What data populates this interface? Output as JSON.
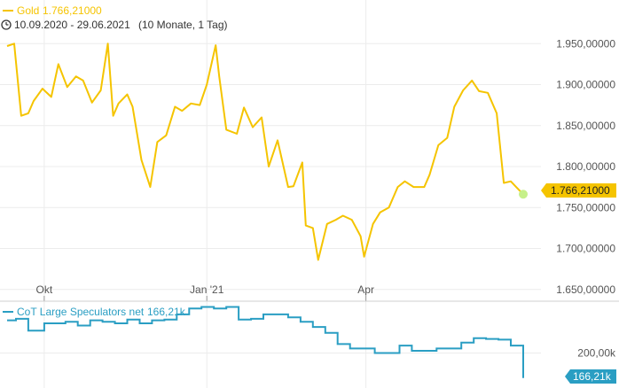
{
  "colors": {
    "gold": "#f5c400",
    "cot": "#2a9ec3",
    "grid": "#ececec",
    "axis_text": "#555555",
    "last_point": "#c6f08a"
  },
  "header": {
    "icon": "clock-icon",
    "series_label": "Gold",
    "series_value": "1.766,21000",
    "range": "10.09.2020 - 29.06.2021",
    "range_note": "(10 Monate, 1 Tag)"
  },
  "chart_data": [
    {
      "type": "line",
      "title": "",
      "xlabel": "",
      "ylabel": "",
      "x_tick_labels": [
        "Okt",
        "Jan '21",
        "Apr"
      ],
      "x_tick_dates": [
        "2020-10-01",
        "2021-01-01",
        "2021-04-01"
      ],
      "y_tick_labels": [
        "1.650,00000",
        "1.700,00000",
        "1.750,00000",
        "1.800,00000",
        "1.850,00000",
        "1.900,00000",
        "1.950,00000"
      ],
      "ylim": [
        1640,
        1960
      ],
      "grid": true,
      "last_value_label": "1.766,21000",
      "series": [
        {
          "name": "Gold",
          "x": [
            "2020-09-10",
            "2020-09-14",
            "2020-09-18",
            "2020-09-22",
            "2020-09-25",
            "2020-09-30",
            "2020-10-05",
            "2020-10-09",
            "2020-10-14",
            "2020-10-19",
            "2020-10-23",
            "2020-10-28",
            "2020-11-02",
            "2020-11-06",
            "2020-11-09",
            "2020-11-12",
            "2020-11-17",
            "2020-11-20",
            "2020-11-25",
            "2020-11-30",
            "2020-12-04",
            "2020-12-09",
            "2020-12-14",
            "2020-12-18",
            "2020-12-23",
            "2020-12-28",
            "2021-01-01",
            "2021-01-06",
            "2021-01-08",
            "2021-01-12",
            "2021-01-18",
            "2021-01-22",
            "2021-01-27",
            "2021-02-01",
            "2021-02-05",
            "2021-02-10",
            "2021-02-16",
            "2021-02-19",
            "2021-02-24",
            "2021-02-26",
            "2021-03-02",
            "2021-03-05",
            "2021-03-10",
            "2021-03-15",
            "2021-03-19",
            "2021-03-24",
            "2021-03-29",
            "2021-03-31",
            "2021-04-05",
            "2021-04-09",
            "2021-04-14",
            "2021-04-19",
            "2021-04-23",
            "2021-04-28",
            "2021-05-04",
            "2021-05-07",
            "2021-05-12",
            "2021-05-17",
            "2021-05-21",
            "2021-05-26",
            "2021-05-31",
            "2021-06-04",
            "2021-06-09",
            "2021-06-14",
            "2021-06-18",
            "2021-06-22",
            "2021-06-25",
            "2021-06-29"
          ],
          "values": [
            1947,
            1950,
            1862,
            1865,
            1880,
            1895,
            1885,
            1925,
            1897,
            1910,
            1905,
            1878,
            1893,
            1950,
            1862,
            1877,
            1888,
            1873,
            1808,
            1775,
            1830,
            1838,
            1873,
            1868,
            1877,
            1875,
            1900,
            1948,
            1910,
            1845,
            1840,
            1872,
            1848,
            1860,
            1800,
            1832,
            1775,
            1776,
            1805,
            1728,
            1725,
            1686,
            1730,
            1735,
            1740,
            1735,
            1715,
            1690,
            1730,
            1744,
            1750,
            1775,
            1782,
            1775,
            1775,
            1790,
            1826,
            1835,
            1873,
            1893,
            1905,
            1892,
            1890,
            1865,
            1780,
            1782,
            1775,
            1766.21
          ]
        }
      ]
    },
    {
      "type": "line",
      "title": "",
      "xlabel": "",
      "ylabel": "",
      "y_tick_labels": [
        "200,00k"
      ],
      "ylim": [
        160,
        265
      ],
      "last_value_label": "166,21k",
      "series": [
        {
          "name": "CoT Large Speculators net",
          "value_label": "166,21k",
          "x": [
            "2020-09-10",
            "2020-09-15",
            "2020-09-22",
            "2020-10-01",
            "2020-10-13",
            "2020-10-20",
            "2020-10-27",
            "2020-11-03",
            "2020-11-10",
            "2020-11-17",
            "2020-11-24",
            "2020-12-01",
            "2020-12-08",
            "2020-12-15",
            "2020-12-22",
            "2020-12-29",
            "2021-01-05",
            "2021-01-12",
            "2021-01-19",
            "2021-01-26",
            "2021-02-02",
            "2021-02-09",
            "2021-02-16",
            "2021-02-23",
            "2021-03-02",
            "2021-03-09",
            "2021-03-16",
            "2021-03-23",
            "2021-03-30",
            "2021-04-06",
            "2021-04-13",
            "2021-04-20",
            "2021-04-27",
            "2021-05-04",
            "2021-05-11",
            "2021-05-18",
            "2021-05-25",
            "2021-06-01",
            "2021-06-08",
            "2021-06-15",
            "2021-06-22",
            "2021-06-29"
          ],
          "values": [
            244,
            246,
            230,
            240,
            242,
            237,
            244,
            242,
            240,
            245,
            240,
            244,
            245,
            252,
            260,
            262,
            260,
            262,
            245,
            246,
            252,
            252,
            248,
            242,
            235,
            227,
            212,
            206,
            206,
            200,
            200,
            210,
            203,
            203,
            206,
            206,
            214,
            220,
            219,
            218,
            210,
            166.21
          ]
        }
      ]
    }
  ]
}
